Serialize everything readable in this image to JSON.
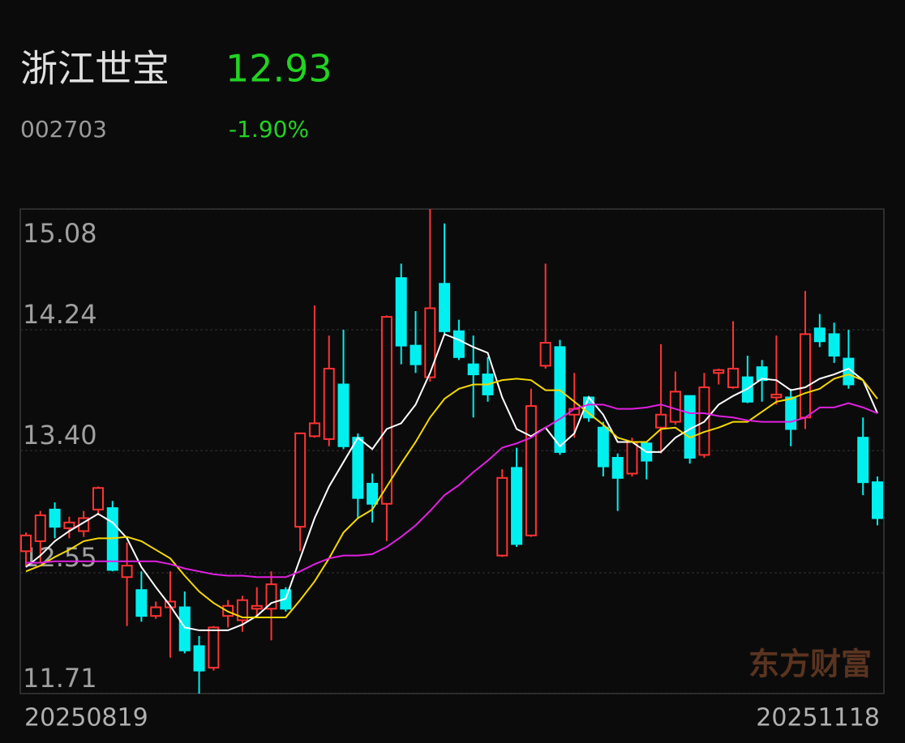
{
  "chart_data": {
    "type": "candlestick",
    "title": "浙江世宝",
    "price": 12.93,
    "code": "002703",
    "change": "-1.90%",
    "watermark": "东方财富",
    "categories": [
      "20250819",
      null,
      null,
      null,
      null,
      null,
      null,
      null,
      null,
      null,
      null,
      null,
      null,
      null,
      null,
      null,
      null,
      null,
      null,
      null,
      null,
      null,
      null,
      null,
      null,
      null,
      null,
      null,
      null,
      null,
      null,
      null,
      null,
      null,
      null,
      null,
      null,
      null,
      null,
      null,
      null,
      null,
      null,
      null,
      null,
      null,
      null,
      null,
      null,
      null,
      null,
      null,
      null,
      null,
      null,
      null,
      null,
      null,
      null,
      "20251118"
    ],
    "open": [
      12.7,
      12.77,
      12.99,
      12.86,
      12.84,
      12.99,
      13.0,
      12.52,
      12.43,
      12.25,
      12.31,
      12.31,
      12.04,
      11.89,
      12.25,
      12.22,
      12.3,
      12.3,
      12.43,
      12.87,
      13.5,
      13.48,
      13.86,
      13.49,
      13.17,
      13.03,
      14.6,
      14.13,
      13.91,
      14.56,
      14.23,
      14.0,
      13.93,
      12.67,
      13.28,
      12.81,
      13.99,
      14.12,
      13.65,
      13.77,
      13.56,
      13.35,
      13.24,
      13.45,
      13.56,
      13.6,
      13.78,
      13.37,
      13.94,
      13.84,
      13.91,
      13.98,
      13.77,
      13.77,
      13.63,
      14.25,
      14.21,
      14.04,
      13.49,
      13.18
    ],
    "high": [
      12.83,
      12.98,
      13.04,
      12.94,
      12.98,
      13.15,
      13.05,
      12.76,
      12.56,
      12.35,
      12.56,
      12.42,
      12.11,
      12.18,
      12.36,
      12.39,
      12.45,
      12.56,
      12.45,
      13.52,
      14.41,
      14.2,
      14.24,
      13.52,
      13.24,
      14.34,
      14.7,
      14.37,
      15.08,
      14.98,
      14.31,
      14.2,
      14.05,
      13.27,
      13.42,
      13.83,
      14.7,
      14.17,
      13.94,
      13.78,
      13.6,
      13.38,
      13.49,
      13.46,
      14.14,
      13.95,
      13.78,
      13.94,
      13.97,
      14.3,
      14.06,
      14.03,
      14.2,
      13.83,
      14.51,
      14.35,
      14.29,
      14.24,
      13.63,
      13.22
    ],
    "low": [
      12.59,
      12.62,
      12.79,
      12.79,
      12.8,
      12.95,
      12.56,
      12.18,
      12.21,
      12.23,
      11.96,
      11.99,
      11.71,
      11.87,
      12.17,
      12.14,
      12.25,
      12.08,
      12.28,
      12.7,
      13.49,
      13.43,
      13.41,
      12.93,
      12.9,
      12.77,
      14.0,
      13.94,
      13.88,
      14.2,
      14.03,
      13.63,
      13.74,
      12.66,
      12.73,
      12.8,
      13.97,
      13.37,
      13.49,
      13.6,
      13.22,
      12.98,
      13.22,
      13.2,
      13.38,
      13.58,
      13.31,
      13.35,
      13.86,
      13.83,
      13.73,
      13.74,
      13.72,
      13.43,
      13.55,
      14.12,
      14.01,
      13.83,
      13.09,
      12.88
    ],
    "close": [
      12.81,
      12.95,
      12.87,
      12.9,
      12.93,
      13.14,
      12.57,
      12.6,
      12.25,
      12.31,
      12.35,
      12.01,
      11.87,
      12.17,
      12.32,
      12.36,
      12.32,
      12.47,
      12.3,
      13.52,
      13.59,
      13.97,
      13.43,
      13.07,
      13.03,
      14.33,
      14.13,
      14.0,
      14.39,
      14.23,
      14.05,
      13.93,
      13.79,
      13.21,
      12.75,
      13.71,
      14.15,
      13.39,
      13.69,
      13.63,
      13.29,
      13.21,
      13.46,
      13.33,
      13.65,
      13.81,
      13.35,
      13.84,
      13.96,
      13.97,
      13.74,
      13.89,
      13.79,
      13.55,
      14.21,
      14.16,
      14.06,
      13.86,
      13.18,
      12.93
    ],
    "up_color": "#ff3333",
    "down_color": "#00f0f0",
    "lines": [
      {
        "color": "#ffffff",
        "values": [
          12.59,
          12.67,
          12.77,
          12.84,
          12.9,
          12.96,
          12.9,
          12.79,
          12.59,
          12.45,
          12.32,
          12.17,
          12.15,
          12.15,
          12.15,
          12.19,
          12.25,
          12.34,
          12.37,
          12.65,
          12.93,
          13.15,
          13.32,
          13.49,
          13.41,
          13.55,
          13.59,
          13.72,
          13.94,
          14.21,
          14.17,
          14.12,
          14.08,
          13.77,
          13.55,
          13.5,
          13.56,
          13.43,
          13.52,
          13.77,
          13.65,
          13.46,
          13.46,
          13.39,
          13.39,
          13.49,
          13.55,
          13.6,
          13.72,
          13.78,
          13.83,
          13.9,
          13.89,
          13.82,
          13.84,
          13.9,
          13.93,
          13.97,
          13.89,
          13.66
        ]
      },
      {
        "color": "#f5d800",
        "values": [
          12.56,
          12.6,
          12.66,
          12.71,
          12.77,
          12.79,
          12.79,
          12.8,
          12.77,
          12.71,
          12.65,
          12.53,
          12.42,
          12.34,
          12.28,
          12.24,
          12.24,
          12.24,
          12.24,
          12.36,
          12.49,
          12.65,
          12.83,
          12.93,
          12.99,
          13.15,
          13.31,
          13.46,
          13.63,
          13.76,
          13.83,
          13.86,
          13.86,
          13.89,
          13.9,
          13.89,
          13.82,
          13.82,
          13.74,
          13.66,
          13.58,
          13.49,
          13.46,
          13.46,
          13.55,
          13.56,
          13.49,
          13.53,
          13.56,
          13.6,
          13.6,
          13.67,
          13.74,
          13.76,
          13.8,
          13.83,
          13.9,
          13.93,
          13.89,
          13.76
        ]
      },
      {
        "color": "#e020e0",
        "values": [
          12.62,
          12.62,
          12.63,
          12.63,
          12.63,
          12.63,
          12.63,
          12.63,
          12.63,
          12.63,
          12.61,
          12.58,
          12.56,
          12.54,
          12.53,
          12.53,
          12.52,
          12.52,
          12.52,
          12.56,
          12.61,
          12.65,
          12.67,
          12.67,
          12.68,
          12.73,
          12.8,
          12.88,
          12.98,
          13.09,
          13.16,
          13.25,
          13.33,
          13.42,
          13.45,
          13.49,
          13.56,
          13.62,
          13.69,
          13.72,
          13.72,
          13.69,
          13.69,
          13.7,
          13.72,
          13.69,
          13.66,
          13.66,
          13.64,
          13.63,
          13.61,
          13.6,
          13.6,
          13.6,
          13.63,
          13.7,
          13.7,
          13.73,
          13.7,
          13.66
        ]
      }
    ],
    "ylim": [
      11.71,
      15.08
    ],
    "yticks": [
      15.08,
      14.24,
      {
        "value": 13.4,
        "label": "13.40"
      },
      12.55,
      11.71
    ],
    "grid": true
  }
}
